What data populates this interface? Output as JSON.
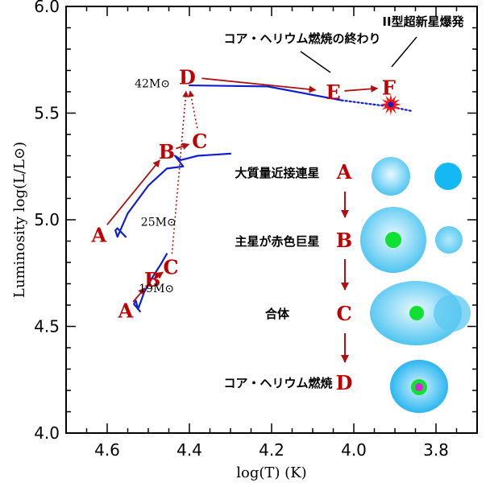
{
  "chart_data": {
    "type": "line",
    "title": "",
    "xlabel": "log(T)   (K)",
    "ylabel": "Luminosity log(L/L⊙)",
    "xlim": [
      4.7,
      3.7
    ],
    "ylim": [
      4.0,
      6.0
    ],
    "x_ticks": [
      {
        "value": 4.6,
        "label": "4.6"
      },
      {
        "value": 4.4,
        "label": "4.4"
      },
      {
        "value": 4.2,
        "label": "4.2"
      },
      {
        "value": 4.0,
        "label": "4.0"
      },
      {
        "value": 3.8,
        "label": "3.8"
      }
    ],
    "y_ticks": [
      {
        "value": 6.0,
        "label": "6.0"
      },
      {
        "value": 5.5,
        "label": "5.5"
      },
      {
        "value": 5.0,
        "label": "5.0"
      },
      {
        "value": 4.5,
        "label": "4.5"
      },
      {
        "value": 4.0,
        "label": "4.0"
      }
    ],
    "grid": false,
    "series": [
      {
        "name": "19M⊙ track",
        "color": "#1020d0",
        "style": "solid",
        "x": [
          4.52,
          4.535,
          4.53,
          4.525,
          4.51,
          4.49,
          4.47,
          4.455
        ],
        "y": [
          4.57,
          4.605,
          4.62,
          4.58,
          4.66,
          4.73,
          4.79,
          4.84
        ]
      },
      {
        "name": "25M⊙ track",
        "color": "#1020d0",
        "style": "solid",
        "x": [
          4.555,
          4.575,
          4.58,
          4.575,
          4.55,
          4.5,
          4.455,
          4.415,
          4.435,
          4.42,
          4.38,
          4.3
        ],
        "y": [
          4.92,
          4.96,
          4.95,
          4.92,
          5.03,
          5.16,
          5.24,
          5.25,
          5.3,
          5.28,
          5.3,
          5.31
        ]
      },
      {
        "name": "42M⊙ track",
        "color": "#1020d0",
        "style": "solid",
        "x": [
          4.4,
          4.21,
          4.03
        ],
        "y": [
          5.63,
          5.625,
          5.56
        ]
      },
      {
        "name": "42M⊙ track (late)",
        "color": "#1020d0",
        "style": "dotted",
        "x": [
          4.03,
          3.91,
          3.86
        ],
        "y": [
          5.56,
          5.53,
          5.51
        ]
      }
    ],
    "stage_labels": [
      {
        "label": "A",
        "x": 4.555,
        "y": 4.575,
        "track": "19M⊙"
      },
      {
        "label": "B",
        "x": 4.49,
        "y": 4.72,
        "track": "19M⊙"
      },
      {
        "label": "C",
        "x": 4.445,
        "y": 4.78,
        "track": "19M⊙"
      },
      {
        "label": "A",
        "x": 4.62,
        "y": 4.93,
        "track": "25M⊙"
      },
      {
        "label": "B",
        "x": 4.455,
        "y": 5.32,
        "track": "25M⊙"
      },
      {
        "label": "C",
        "x": 4.375,
        "y": 5.37,
        "track": "25M⊙"
      },
      {
        "label": "D",
        "x": 4.405,
        "y": 5.67,
        "track": "42M⊙"
      },
      {
        "label": "E",
        "x": 4.05,
        "y": 5.6,
        "track": "42M⊙"
      },
      {
        "label": "F",
        "x": 3.915,
        "y": 5.62,
        "track": "42M⊙"
      }
    ],
    "mass_labels": [
      {
        "text": "19M⊙",
        "x": 4.48,
        "y": 4.68
      },
      {
        "text": "25M⊙",
        "x": 4.475,
        "y": 4.99
      },
      {
        "text": "42M⊙",
        "x": 4.49,
        "y": 5.64
      }
    ],
    "annotations": [
      {
        "text": "コア・ヘリウム燃焼の終わり",
        "points_to": "E"
      },
      {
        "text": "II型超新星爆発",
        "points_to": "F"
      }
    ],
    "supernova_marker": {
      "x": 3.91,
      "y": 5.54,
      "color": "#ff1010",
      "core_color": "#1020d0"
    }
  },
  "legend_panel": {
    "stages": [
      {
        "letter": "A",
        "description": "大質量近接連星"
      },
      {
        "letter": "B",
        "description": "主星が赤色巨星"
      },
      {
        "letter": "C",
        "description": "合体"
      },
      {
        "letter": "D",
        "description": "コア・ヘリウム燃焼"
      }
    ]
  },
  "colors": {
    "track": "#1020d0",
    "arrow": "#b01010",
    "letter": "#c00000",
    "star_light": "#cdeffc",
    "star_dark": "#1fb8f0",
    "core_green": "#10e030",
    "core_magenta": "#e020e0"
  }
}
